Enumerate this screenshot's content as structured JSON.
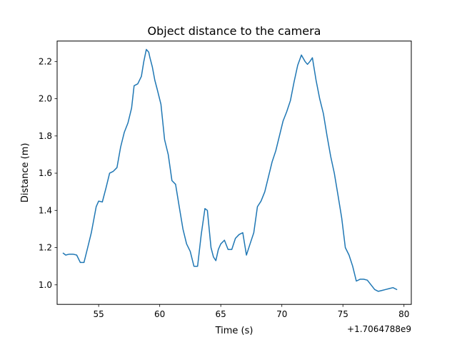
{
  "chart_data": {
    "type": "line",
    "title": "Object distance to the camera",
    "xlabel": "Time (s)",
    "ylabel": "Distance (m)",
    "x_offset_label": "+1.7064788e9",
    "xlim": [
      51.6,
      80.6
    ],
    "ylim": [
      0.895,
      2.31
    ],
    "grid": false,
    "xticks": [
      55,
      60,
      65,
      70,
      75,
      80
    ],
    "xtick_labels": [
      "55",
      "60",
      "65",
      "70",
      "75",
      "80"
    ],
    "yticks": [
      1.0,
      1.2,
      1.4,
      1.6,
      1.8,
      2.0,
      2.2
    ],
    "ytick_labels": [
      "1.0",
      "1.2",
      "1.4",
      "1.6",
      "1.8",
      "2.0",
      "2.2"
    ],
    "series": [
      {
        "color": "#1f77b4",
        "x": [
          52.1,
          52.3,
          52.6,
          52.9,
          53.2,
          53.5,
          53.8,
          54.1,
          54.4,
          54.6,
          54.8,
          55.0,
          55.3,
          55.6,
          55.9,
          56.2,
          56.5,
          56.8,
          57.1,
          57.4,
          57.7,
          57.9,
          58.2,
          58.5,
          58.7,
          58.9,
          59.1,
          59.2,
          59.4,
          59.6,
          59.8,
          60.1,
          60.4,
          60.7,
          61.0,
          61.3,
          61.6,
          61.9,
          62.2,
          62.5,
          62.8,
          63.1,
          63.4,
          63.7,
          63.9,
          64.2,
          64.4,
          64.6,
          64.8,
          65.0,
          65.3,
          65.6,
          65.9,
          66.2,
          66.5,
          66.8,
          67.1,
          67.4,
          67.7,
          68.0,
          68.3,
          68.6,
          68.9,
          69.2,
          69.5,
          69.8,
          70.1,
          70.4,
          70.7,
          71.0,
          71.3,
          71.6,
          71.9,
          72.1,
          72.3,
          72.5,
          72.8,
          73.1,
          73.4,
          73.7,
          74.0,
          74.3,
          74.6,
          74.9,
          75.2,
          75.5,
          75.8,
          76.1,
          76.4,
          76.7,
          77.0,
          77.3,
          77.6,
          77.9,
          78.2,
          78.5,
          78.8,
          79.1,
          79.4
        ],
        "y": [
          1.17,
          1.16,
          1.165,
          1.165,
          1.16,
          1.12,
          1.12,
          1.2,
          1.28,
          1.35,
          1.42,
          1.45,
          1.445,
          1.52,
          1.6,
          1.61,
          1.63,
          1.74,
          1.82,
          1.87,
          1.95,
          2.07,
          2.08,
          2.12,
          2.2,
          2.265,
          2.25,
          2.22,
          2.17,
          2.1,
          2.05,
          1.97,
          1.78,
          1.7,
          1.56,
          1.54,
          1.42,
          1.3,
          1.22,
          1.18,
          1.1,
          1.1,
          1.27,
          1.41,
          1.4,
          1.2,
          1.15,
          1.13,
          1.19,
          1.22,
          1.24,
          1.19,
          1.19,
          1.25,
          1.27,
          1.28,
          1.16,
          1.22,
          1.28,
          1.42,
          1.45,
          1.5,
          1.58,
          1.66,
          1.72,
          1.8,
          1.88,
          1.93,
          1.99,
          2.09,
          2.18,
          2.235,
          2.2,
          2.185,
          2.2,
          2.22,
          2.1,
          2.0,
          1.92,
          1.8,
          1.69,
          1.6,
          1.48,
          1.36,
          1.2,
          1.16,
          1.1,
          1.02,
          1.03,
          1.03,
          1.025,
          1.0,
          0.975,
          0.965,
          0.97,
          0.975,
          0.98,
          0.985,
          0.975
        ]
      }
    ]
  }
}
